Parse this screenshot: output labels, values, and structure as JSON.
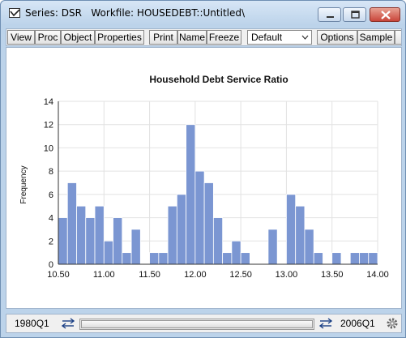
{
  "window": {
    "title": "Series: DSR   Workfile: HOUSEDEBT::Untitled\\"
  },
  "toolbar": {
    "buttons": [
      "View",
      "Proc",
      "Object",
      "Properties",
      "Print",
      "Name",
      "Freeze",
      "Options",
      "Sample"
    ],
    "view_select": "Default"
  },
  "chart_data": {
    "type": "bar",
    "title": "Household Debt Service Ratio",
    "xlabel": "",
    "ylabel": "Frequency",
    "bin_width": 0.1,
    "bin_starts": [
      10.5,
      10.6,
      10.7,
      10.8,
      10.9,
      11.0,
      11.1,
      11.2,
      11.3,
      11.4,
      11.5,
      11.6,
      11.7,
      11.8,
      11.9,
      12.0,
      12.1,
      12.2,
      12.3,
      12.4,
      12.5,
      12.6,
      12.7,
      12.8,
      12.9,
      13.0,
      13.1,
      13.2,
      13.3,
      13.4,
      13.5,
      13.6,
      13.7,
      13.8,
      13.9
    ],
    "values": [
      4,
      7,
      5,
      4,
      5,
      2,
      4,
      1,
      3,
      0,
      1,
      1,
      5,
      6,
      12,
      8,
      7,
      4,
      1,
      2,
      1,
      0,
      0,
      3,
      0,
      6,
      5,
      3,
      1,
      0,
      1,
      0,
      1,
      1,
      1
    ],
    "xlim": [
      10.5,
      14.0
    ],
    "ylim": [
      0,
      14
    ],
    "x_ticks": [
      "10.50",
      "11.00",
      "11.50",
      "12.00",
      "12.50",
      "13.00",
      "13.50",
      "14.00"
    ],
    "x_tick_values": [
      10.5,
      11.0,
      11.5,
      12.0,
      12.5,
      13.0,
      13.5,
      14.0
    ],
    "y_ticks": [
      "0",
      "2",
      "4",
      "6",
      "8",
      "10",
      "12",
      "14"
    ],
    "y_tick_values": [
      0,
      2,
      4,
      6,
      8,
      10,
      12,
      14
    ],
    "bar_color": "#7b96d2",
    "grid": true
  },
  "sample": {
    "start": "1980Q1",
    "end": "2006Q1"
  }
}
